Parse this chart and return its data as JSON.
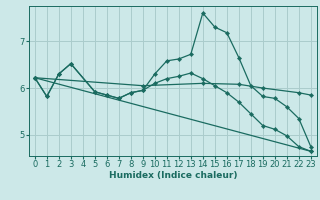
{
  "xlabel": "Humidex (Indice chaleur)",
  "bg_color": "#cce8e8",
  "line_color": "#1a6b60",
  "grid_color": "#aacccc",
  "xlim": [
    -0.5,
    23.5
  ],
  "ylim": [
    4.55,
    7.75
  ],
  "yticks": [
    5,
    6,
    7
  ],
  "xticks": [
    0,
    1,
    2,
    3,
    4,
    5,
    6,
    7,
    8,
    9,
    10,
    11,
    12,
    13,
    14,
    15,
    16,
    17,
    18,
    19,
    20,
    21,
    22,
    23
  ],
  "lines": [
    {
      "x": [
        0,
        1,
        2,
        3,
        5,
        6,
        7,
        8,
        9,
        10,
        11,
        12,
        13,
        14,
        15,
        16,
        17,
        18,
        19,
        20,
        21,
        22,
        23
      ],
      "y": [
        6.22,
        5.82,
        6.3,
        6.52,
        5.92,
        5.85,
        5.78,
        5.9,
        5.95,
        6.3,
        6.58,
        6.62,
        6.72,
        7.6,
        7.3,
        7.18,
        6.65,
        6.05,
        5.82,
        5.78,
        5.6,
        5.35,
        4.75
      ]
    },
    {
      "x": [
        0,
        9,
        14,
        17,
        19,
        22,
        23
      ],
      "y": [
        6.22,
        6.05,
        6.1,
        6.08,
        6.0,
        5.9,
        5.85
      ]
    },
    {
      "x": [
        0,
        1,
        2,
        3,
        5,
        6,
        7,
        8,
        9,
        10,
        11,
        12,
        13,
        14,
        15,
        16,
        17,
        18,
        19,
        20,
        21,
        22,
        23
      ],
      "y": [
        6.22,
        5.82,
        6.3,
        6.52,
        5.92,
        5.85,
        5.78,
        5.9,
        5.95,
        6.1,
        6.2,
        6.25,
        6.32,
        6.2,
        6.05,
        5.9,
        5.7,
        5.45,
        5.2,
        5.12,
        4.98,
        4.75,
        4.65
      ]
    },
    {
      "x": [
        0,
        23
      ],
      "y": [
        6.22,
        4.65
      ]
    }
  ]
}
